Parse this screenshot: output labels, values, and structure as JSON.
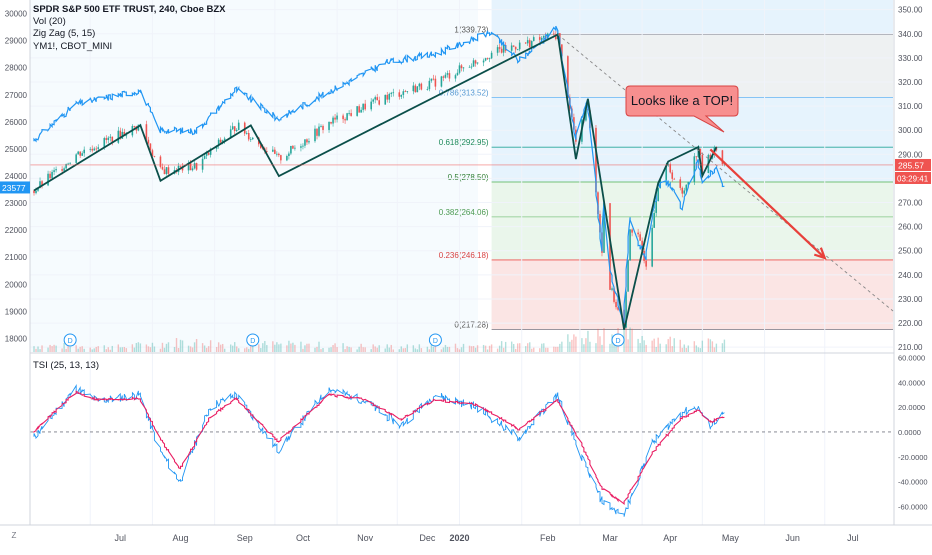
{
  "legend": {
    "title": "SPDR S&P 500 ETF TRUST, 240, Cboe BZX",
    "vol": "Vol (20)",
    "zigzag": "Zig Zag (5, 15)",
    "overlay": "YM1!, CBOT_MINI"
  },
  "tsi_label": "TSI (25, 13, 13)",
  "annotation": "Looks like a TOP!",
  "price_badge": "285.57",
  "time_badge": "03:29:41",
  "left_badge": "23577",
  "dividend_marker": "D",
  "corner_label": "Z",
  "colors": {
    "spy_up": "#26a69a",
    "spy_down": "#ef5350",
    "overlay_line": "#2196f3",
    "zigzag": "#0b4f4a",
    "arrow": "#e8403a",
    "tsi_line": "#2196f3",
    "tsi_signal": "#e91e63",
    "fib_blue": "#e3f2fd",
    "fib_gray": "#eceff1",
    "fib_green": "#e8f5e9",
    "fib_red": "#fde3e3"
  },
  "chart_data": [
    {
      "type": "line",
      "series": [
        {
          "name": "SPDR S&P 500 ETF TRUST",
          "role": "price",
          "axis": "right",
          "x": [
            "2019-06-03",
            "2019-06-24",
            "2019-07-26",
            "2019-08-05",
            "2019-08-23",
            "2019-09-12",
            "2019-10-03",
            "2019-10-28",
            "2019-11-26",
            "2019-12-20",
            "2020-01-17",
            "2020-02-19",
            "2020-02-28",
            "2020-03-05",
            "2020-03-09",
            "2020-03-12",
            "2020-03-13",
            "2020-03-16",
            "2020-03-23",
            "2020-03-26",
            "2020-03-30",
            "2020-04-03",
            "2020-04-09",
            "2020-04-14",
            "2020-04-21",
            "2020-04-29",
            "2020-05-01",
            "2020-05-05",
            "2020-05-08",
            "2020-05-12"
          ],
          "y": [
            275,
            290,
            302,
            283,
            285,
            302,
            288,
            303,
            314,
            320,
            332,
            339.7,
            295,
            310,
            275,
            250,
            270,
            235,
            217.3,
            260,
            255,
            245,
            278,
            285,
            273,
            293,
            283,
            290,
            292,
            285.6
          ]
        },
        {
          "name": "YM1!, CBOT_MINI",
          "role": "overlay",
          "axis": "left",
          "x": [
            "2019-06-03",
            "2019-06-24",
            "2019-07-26",
            "2019-08-05",
            "2019-08-23",
            "2019-09-12",
            "2019-10-03",
            "2019-10-28",
            "2019-11-26",
            "2019-12-20",
            "2020-01-17",
            "2020-01-31",
            "2020-02-19",
            "2020-02-28",
            "2020-03-05",
            "2020-03-09",
            "2020-03-12",
            "2020-03-13",
            "2020-03-16",
            "2020-03-23",
            "2020-03-26",
            "2020-03-30",
            "2020-04-03",
            "2020-04-09",
            "2020-04-14",
            "2020-04-21",
            "2020-04-29",
            "2020-05-01",
            "2020-05-05",
            "2020-05-08",
            "2020-05-12"
          ],
          "y": [
            25300,
            26650,
            27150,
            25700,
            25650,
            27200,
            26100,
            27100,
            28200,
            28500,
            29300,
            28250,
            29500,
            25400,
            26800,
            23800,
            21200,
            23100,
            20600,
            18500,
            22400,
            21600,
            21000,
            23600,
            23800,
            22800,
            24600,
            23700,
            24100,
            24300,
            23577
          ]
        },
        {
          "name": "Zig Zag (5, 15)",
          "role": "zigzag",
          "axis": "right",
          "x": [
            "2019-06-03",
            "2019-07-26",
            "2019-08-05",
            "2019-09-19",
            "2019-10-03",
            "2020-02-19",
            "2020-02-28",
            "2020-03-05",
            "2020-03-23",
            "2020-04-09",
            "2020-04-14",
            "2020-04-29",
            "2020-05-01",
            "2020-05-08"
          ],
          "y": [
            275,
            302,
            279,
            302,
            281,
            339.7,
            288,
            313,
            217.3,
            278,
            287,
            293,
            281,
            293
          ]
        }
      ],
      "volume": {
        "axis": "bottom",
        "note": "Vol (20)",
        "x": [
          "2019-06",
          "2019-07",
          "2019-08",
          "2019-09",
          "2019-10",
          "2019-11",
          "2019-12",
          "2020-01",
          "2020-02",
          "2020-03",
          "2020-04",
          "2020-05"
        ],
        "values": [
          55,
          45,
          90,
          70,
          65,
          50,
          45,
          60,
          80,
          180,
          100,
          70
        ]
      },
      "fibonacci": [
        {
          "ratio": "1",
          "level": 339.73,
          "label": "1(339.73)"
        },
        {
          "ratio": "0.786",
          "level": 313.52,
          "label": "0.786(313.52)"
        },
        {
          "ratio": "0.618",
          "level": 292.95,
          "label": "0.618(292.95)"
        },
        {
          "ratio": "0.5",
          "level": 278.5,
          "label": "0.5(278.50)"
        },
        {
          "ratio": "0.382",
          "level": 264.06,
          "label": "0.382(264.06)"
        },
        {
          "ratio": "0.236",
          "level": 246.18,
          "label": "0.236(246.18)"
        },
        {
          "ratio": "0",
          "level": 217.28,
          "label": "0(217.28)"
        }
      ],
      "projection": {
        "from": [
          "2020-05-05",
          292
        ],
        "to": [
          "2020-07-01",
          247
        ]
      },
      "right_ticks": [
        "350.00",
        "340.00",
        "330.00",
        "320.00",
        "310.00",
        "300.00",
        "290.00",
        "280.00",
        "270.00",
        "260.00",
        "250.00",
        "240.00",
        "230.00",
        "220.00",
        "210.00"
      ],
      "left_ticks": [
        "30000",
        "29000",
        "28000",
        "27000",
        "26000",
        "25000",
        "24000",
        "23000",
        "22000",
        "21000",
        "20000",
        "19000",
        "18000"
      ],
      "ylim_right": [
        208,
        354
      ],
      "ylim_left": [
        17500,
        30500
      ]
    },
    {
      "type": "line",
      "title": "TSI (25, 13, 13)",
      "series": [
        {
          "name": "TSI",
          "role": "tsi",
          "x": [
            "2019-06-03",
            "2019-06-24",
            "2019-07-05",
            "2019-07-26",
            "2019-08-05",
            "2019-08-15",
            "2019-08-30",
            "2019-09-12",
            "2019-10-03",
            "2019-10-28",
            "2019-11-15",
            "2019-12-03",
            "2019-12-20",
            "2020-01-10",
            "2020-01-31",
            "2020-02-19",
            "2020-03-02",
            "2020-03-12",
            "2020-03-23",
            "2020-04-06",
            "2020-04-20",
            "2020-04-29",
            "2020-05-05",
            "2020-05-12"
          ],
          "y": [
            -5,
            35,
            25,
            30,
            -15,
            -40,
            20,
            30,
            -15,
            35,
            25,
            5,
            30,
            20,
            -5,
            30,
            -20,
            -55,
            -68,
            -10,
            15,
            20,
            5,
            15
          ]
        },
        {
          "name": "Signal",
          "role": "signal",
          "x": [
            "2019-06-03",
            "2019-06-24",
            "2019-07-05",
            "2019-07-26",
            "2019-08-05",
            "2019-08-15",
            "2019-08-30",
            "2019-09-12",
            "2019-10-03",
            "2019-10-28",
            "2019-11-15",
            "2019-12-03",
            "2019-12-20",
            "2020-01-10",
            "2020-01-31",
            "2020-02-19",
            "2020-03-02",
            "2020-03-12",
            "2020-03-23",
            "2020-04-06",
            "2020-04-20",
            "2020-04-29",
            "2020-05-05",
            "2020-05-12"
          ],
          "y": [
            0,
            32,
            26,
            27,
            -5,
            -30,
            12,
            27,
            -8,
            30,
            26,
            10,
            26,
            22,
            2,
            26,
            -10,
            -45,
            -58,
            -18,
            10,
            18,
            8,
            12
          ]
        }
      ],
      "right_ticks": [
        "60.0000",
        "40.0000",
        "20.0000",
        "0.0000",
        "-20.0000",
        "-40.0000",
        "-60.0000"
      ],
      "ylim": [
        -75,
        62
      ]
    }
  ],
  "x_axis_labels": [
    "Jul",
    "Aug",
    "Sep",
    "Oct",
    "Nov",
    "Dec",
    "2020",
    "Feb",
    "Mar",
    "Apr",
    "May",
    "Jun",
    "Jul"
  ]
}
